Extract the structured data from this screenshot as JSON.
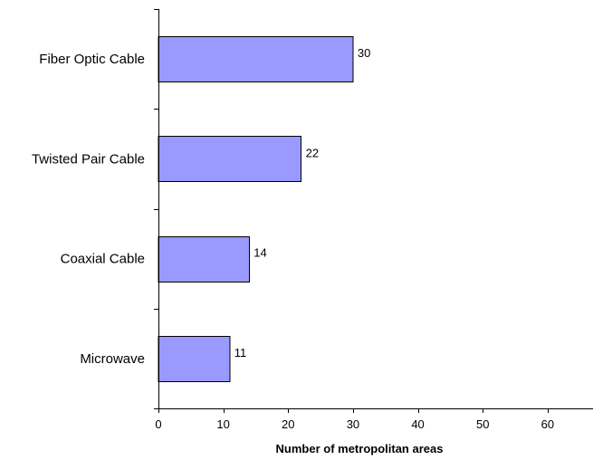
{
  "chart_data": {
    "type": "bar",
    "orientation": "horizontal",
    "categories": [
      "Fiber Optic Cable",
      "Twisted Pair Cable",
      "Coaxial Cable",
      "Microwave"
    ],
    "values": [
      30,
      22,
      14,
      11
    ],
    "data_labels": [
      "30",
      "22",
      "14",
      "11"
    ],
    "title": "",
    "xlabel": "Number of metropolitan areas",
    "ylabel": "",
    "xlim": [
      0,
      67
    ],
    "x_ticks": [
      0,
      10,
      20,
      30,
      40,
      50,
      60
    ],
    "x_tick_labels": [
      "0",
      "10",
      "20",
      "30",
      "40",
      "50",
      "60"
    ],
    "grid": false,
    "legend": "none",
    "bar_color": "#9999FF",
    "bar_edge_color": "#000000"
  }
}
